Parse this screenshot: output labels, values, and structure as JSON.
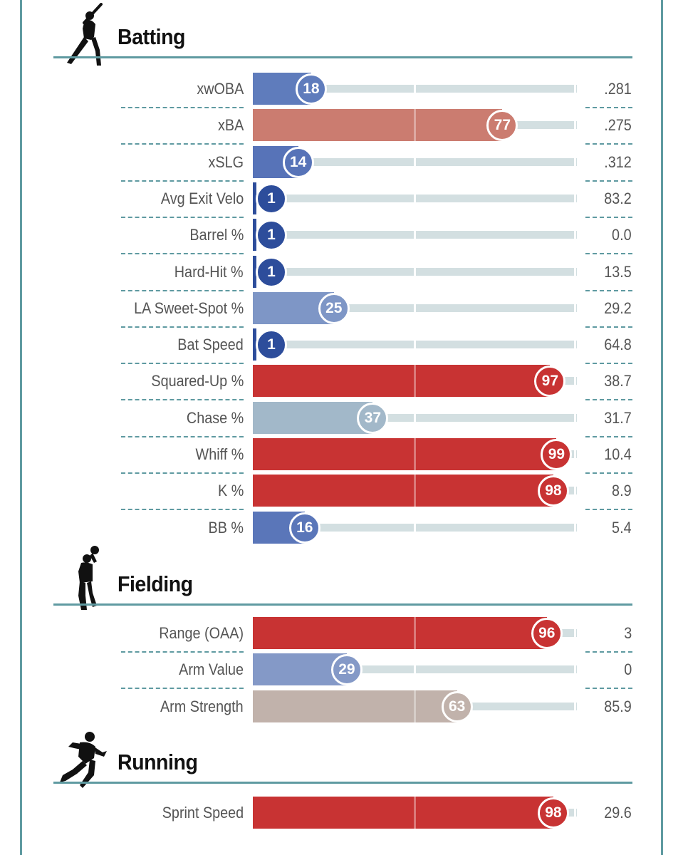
{
  "chart_data": {
    "type": "bar",
    "xlim": [
      0,
      100
    ],
    "sections": [
      {
        "title": "Batting",
        "icon": "batter-silhouette-icon",
        "metrics": [
          {
            "label": "xwOBA",
            "percentile": 18,
            "value": ".281",
            "color": "#5f7cbc"
          },
          {
            "label": "xBA",
            "percentile": 77,
            "value": ".275",
            "color": "#cb7c70"
          },
          {
            "label": "xSLG",
            "percentile": 14,
            "value": ".312",
            "color": "#5773b8"
          },
          {
            "label": "Avg Exit Velo",
            "percentile": 1,
            "value": "83.2",
            "color": "#2d4d9b"
          },
          {
            "label": "Barrel %",
            "percentile": 1,
            "value": "0.0",
            "color": "#2d4d9b"
          },
          {
            "label": "Hard-Hit %",
            "percentile": 1,
            "value": "13.5",
            "color": "#2d4d9b"
          },
          {
            "label": "LA Sweet-Spot %",
            "percentile": 25,
            "value": "29.2",
            "color": "#7e96c6"
          },
          {
            "label": "Bat Speed",
            "percentile": 1,
            "value": "64.8",
            "color": "#2d4d9b"
          },
          {
            "label": "Squared-Up %",
            "percentile": 97,
            "value": "38.7",
            "color": "#c83333"
          },
          {
            "label": "Chase %",
            "percentile": 37,
            "value": "31.7",
            "color": "#a2b8c9"
          },
          {
            "label": "Whiff %",
            "percentile": 99,
            "value": "10.4",
            "color": "#c83333"
          },
          {
            "label": "K %",
            "percentile": 98,
            "value": "8.9",
            "color": "#c83333"
          },
          {
            "label": "BB %",
            "percentile": 16,
            "value": "5.4",
            "color": "#5a76b9"
          }
        ]
      },
      {
        "title": "Fielding",
        "icon": "fielder-silhouette-icon",
        "metrics": [
          {
            "label": "Range (OAA)",
            "percentile": 96,
            "value": "3",
            "color": "#c83333"
          },
          {
            "label": "Arm Value",
            "percentile": 29,
            "value": "0",
            "color": "#8499c7"
          },
          {
            "label": "Arm Strength",
            "percentile": 63,
            "value": "85.9",
            "color": "#c1b2ab"
          }
        ]
      },
      {
        "title": "Running",
        "icon": "runner-silhouette-icon",
        "metrics": [
          {
            "label": "Sprint Speed",
            "percentile": 98,
            "value": "29.6",
            "color": "#c83333"
          }
        ]
      }
    ]
  }
}
